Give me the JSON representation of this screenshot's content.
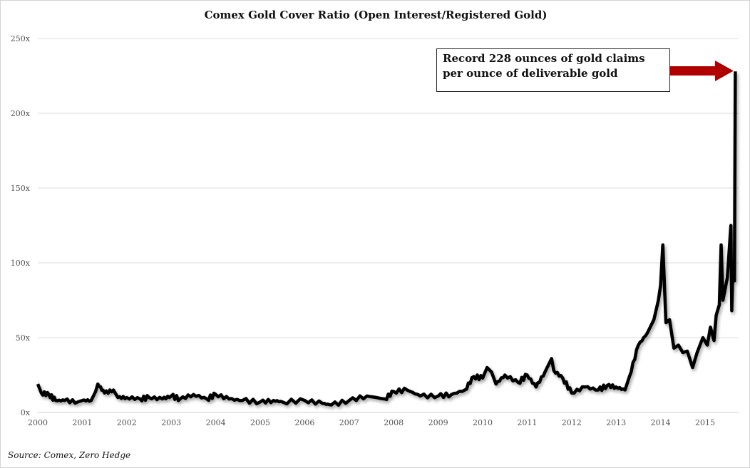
{
  "chart_data": {
    "type": "line",
    "title": "Comex Gold Cover Ratio (Open Interest/Registered Gold)",
    "xlabel": "",
    "ylabel": "",
    "xlim": [
      2000,
      2015.75
    ],
    "ylim": [
      0,
      250
    ],
    "grid": true,
    "x_ticks": [
      "2000",
      "2001",
      "2002",
      "2003",
      "2004",
      "2005",
      "2006",
      "2007",
      "2008",
      "2009",
      "2010",
      "2011",
      "2012",
      "2013",
      "2014",
      "2015"
    ],
    "y_ticks": [
      "0x",
      "50x",
      "100x",
      "150x",
      "200x",
      "250x"
    ],
    "series": [
      {
        "name": "Cover Ratio",
        "color": "#000000",
        "points": [
          [
            2000.0,
            19
          ],
          [
            2000.08,
            13
          ],
          [
            2000.25,
            12
          ],
          [
            2000.4,
            8
          ],
          [
            2000.6,
            8
          ],
          [
            2000.9,
            7
          ],
          [
            2001.0,
            8
          ],
          [
            2001.2,
            8
          ],
          [
            2001.3,
            14
          ],
          [
            2001.35,
            19
          ],
          [
            2001.5,
            13
          ],
          [
            2001.7,
            15
          ],
          [
            2001.8,
            10
          ],
          [
            2002.0,
            10
          ],
          [
            2002.3,
            9
          ],
          [
            2002.5,
            10
          ],
          [
            2002.8,
            9
          ],
          [
            2003.0,
            11
          ],
          [
            2003.2,
            9
          ],
          [
            2003.5,
            12
          ],
          [
            2003.8,
            9
          ],
          [
            2004.0,
            12
          ],
          [
            2004.3,
            9
          ],
          [
            2004.6,
            8
          ],
          [
            2005.0,
            7
          ],
          [
            2005.3,
            8
          ],
          [
            2005.5,
            7
          ],
          [
            2006.0,
            8
          ],
          [
            2006.4,
            6
          ],
          [
            2006.6,
            5
          ],
          [
            2007.0,
            8
          ],
          [
            2007.4,
            11
          ],
          [
            2007.8,
            9
          ],
          [
            2008.0,
            14
          ],
          [
            2008.3,
            15
          ],
          [
            2008.6,
            11
          ],
          [
            2009.0,
            11
          ],
          [
            2009.3,
            12
          ],
          [
            2009.6,
            15
          ],
          [
            2009.8,
            24
          ],
          [
            2010.0,
            23
          ],
          [
            2010.1,
            30
          ],
          [
            2010.2,
            27
          ],
          [
            2010.3,
            19
          ],
          [
            2010.5,
            25
          ],
          [
            2010.8,
            20
          ],
          [
            2011.0,
            25
          ],
          [
            2011.2,
            17
          ],
          [
            2011.4,
            27
          ],
          [
            2011.55,
            36
          ],
          [
            2011.6,
            28
          ],
          [
            2011.8,
            23
          ],
          [
            2012.0,
            13
          ],
          [
            2012.3,
            17
          ],
          [
            2012.6,
            15
          ],
          [
            2012.8,
            18
          ],
          [
            2013.0,
            17
          ],
          [
            2013.2,
            15
          ],
          [
            2013.3,
            24
          ],
          [
            2013.5,
            45
          ],
          [
            2013.7,
            53
          ],
          [
            2013.85,
            62
          ],
          [
            2013.95,
            75
          ],
          [
            2014.0,
            85
          ],
          [
            2014.05,
            112
          ],
          [
            2014.12,
            60
          ],
          [
            2014.2,
            62
          ],
          [
            2014.3,
            43
          ],
          [
            2014.4,
            45
          ],
          [
            2014.5,
            40
          ],
          [
            2014.6,
            41
          ],
          [
            2014.72,
            30
          ],
          [
            2014.82,
            40
          ],
          [
            2014.95,
            50
          ],
          [
            2015.05,
            45
          ],
          [
            2015.12,
            57
          ],
          [
            2015.2,
            48
          ],
          [
            2015.25,
            65
          ],
          [
            2015.32,
            72
          ],
          [
            2015.36,
            112
          ],
          [
            2015.4,
            75
          ],
          [
            2015.5,
            90
          ],
          [
            2015.58,
            125
          ],
          [
            2015.6,
            68
          ],
          [
            2015.63,
            100
          ],
          [
            2015.66,
            88
          ],
          [
            2015.68,
            228
          ]
        ]
      }
    ],
    "annotation": {
      "line1": "Record 228 ounces of gold claims",
      "line2": "per ounce of deliverable gold",
      "arrow_color": "#b00000"
    },
    "source": "Source: Comex, Zero Hedge"
  }
}
